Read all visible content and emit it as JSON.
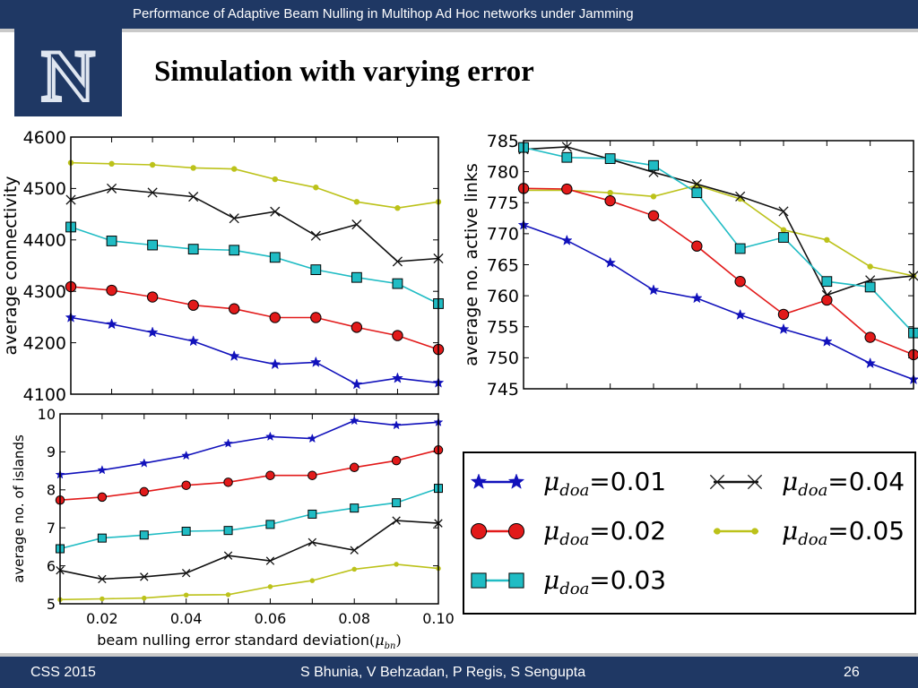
{
  "header": {
    "title": "Performance of Adaptive Beam Nulling in Multihop Ad Hoc networks under Jamming"
  },
  "logo": {
    "letter": "N"
  },
  "slide": {
    "title": "Simulation with varying error"
  },
  "footer": {
    "left": "CSS 2015",
    "center": "S Bhunia, V Behzadan, P Regis, S Sengupta",
    "page": "26"
  },
  "colors": {
    "header_bg": "#1f3864",
    "series": {
      "0.01": "#1111bb",
      "0.02": "#e21a1a",
      "0.03": "#20bcc4",
      "0.04": "#111111",
      "0.05": "#bcc21a"
    }
  },
  "legend": {
    "entries": [
      {
        "marker": "star",
        "color": "#1111bb",
        "label_sym": "μ",
        "label_sub": "doa",
        "label_eq": "=",
        "label_val": "0.01"
      },
      {
        "marker": "x",
        "color": "#111111",
        "label_sym": "μ",
        "label_sub": "doa",
        "label_eq": "=",
        "label_val": "0.04"
      },
      {
        "marker": "circle",
        "color": "#e21a1a",
        "label_sym": "μ",
        "label_sub": "doa",
        "label_eq": "=",
        "label_val": "0.02"
      },
      {
        "marker": "dot",
        "color": "#bcc21a",
        "label_sym": "μ",
        "label_sub": "doa",
        "label_eq": "=",
        "label_val": "0.05"
      },
      {
        "marker": "square",
        "color": "#20bcc4",
        "label_sym": "μ",
        "label_sub": "doa",
        "label_eq": "=",
        "label_val": "0.03"
      }
    ]
  },
  "chart_data": [
    {
      "type": "line",
      "ylabel": "average connectivity",
      "xlabel": "",
      "ylim": [
        4100,
        4600
      ],
      "xlim": [
        0.01,
        0.1
      ],
      "yticks": [
        "4100",
        "4200",
        "4300",
        "4400",
        "4500",
        "4600"
      ],
      "xticks": [],
      "x": [
        0.01,
        0.02,
        0.03,
        0.04,
        0.05,
        0.06,
        0.07,
        0.08,
        0.09,
        0.1
      ],
      "series": [
        {
          "name": "0.05",
          "marker": "dot",
          "values": [
            4550,
            4548,
            4546,
            4540,
            4538,
            4518,
            4502,
            4474,
            4462,
            4474
          ]
        },
        {
          "name": "0.04",
          "marker": "x",
          "values": [
            4478,
            4500,
            4492,
            4484,
            4442,
            4455,
            4408,
            4430,
            4358,
            4364
          ]
        },
        {
          "name": "0.03",
          "marker": "square",
          "values": [
            4425,
            4398,
            4390,
            4382,
            4380,
            4366,
            4342,
            4327,
            4315,
            4276
          ]
        },
        {
          "name": "0.02",
          "marker": "circle",
          "values": [
            4309,
            4302,
            4289,
            4273,
            4266,
            4249,
            4249,
            4230,
            4214,
            4187
          ]
        },
        {
          "name": "0.01",
          "marker": "star",
          "values": [
            4249,
            4236,
            4220,
            4203,
            4174,
            4158,
            4162,
            4119,
            4131,
            4122
          ]
        }
      ]
    },
    {
      "type": "line",
      "ylabel": "average no. active links",
      "xlabel": "",
      "ylim": [
        745,
        785
      ],
      "xlim": [
        0.01,
        0.1
      ],
      "yticks": [
        "745",
        "750",
        "755",
        "760",
        "765",
        "770",
        "775",
        "780",
        "785"
      ],
      "xticks": [],
      "x": [
        0.01,
        0.02,
        0.03,
        0.04,
        0.05,
        0.06,
        0.07,
        0.08,
        0.09,
        0.1
      ],
      "series": [
        {
          "name": "0.05",
          "marker": "dot",
          "values": [
            777.0,
            777.0,
            776.6,
            776.0,
            777.8,
            775.6,
            770.6,
            769.0,
            764.7,
            763.2
          ]
        },
        {
          "name": "0.04",
          "marker": "x",
          "values": [
            783.6,
            784.0,
            782.0,
            779.9,
            778.0,
            776.0,
            773.6,
            760.1,
            762.5,
            763.2
          ]
        },
        {
          "name": "0.03",
          "marker": "square",
          "values": [
            783.9,
            782.3,
            782.1,
            781.0,
            776.6,
            767.6,
            769.4,
            762.3,
            761.4,
            754.0
          ]
        },
        {
          "name": "0.02",
          "marker": "circle",
          "values": [
            777.3,
            777.2,
            775.3,
            772.9,
            768.0,
            762.3,
            757.0,
            759.3,
            753.3,
            750.5
          ]
        },
        {
          "name": "0.01",
          "marker": "star",
          "values": [
            771.4,
            768.9,
            765.3,
            760.9,
            759.6,
            756.9,
            754.6,
            752.6,
            749.1,
            746.5
          ]
        }
      ]
    },
    {
      "type": "line",
      "ylabel": "average no. of islands",
      "xlabel": "beam nulling error standard deviation",
      "xlabel_sym": "μ",
      "xlabel_sub": "bn",
      "ylim": [
        5,
        10
      ],
      "xlim": [
        0.01,
        0.1
      ],
      "yticks": [
        "5",
        "6",
        "7",
        "8",
        "9",
        "10"
      ],
      "xticks": [
        "0.02",
        "0.04",
        "0.06",
        "0.08",
        "0.10"
      ],
      "x": [
        0.01,
        0.02,
        0.03,
        0.04,
        0.05,
        0.06,
        0.07,
        0.08,
        0.09,
        0.1
      ],
      "series": [
        {
          "name": "0.01",
          "marker": "star",
          "values": [
            8.4,
            8.52,
            8.7,
            8.9,
            9.22,
            9.4,
            9.35,
            9.82,
            9.7,
            9.78
          ]
        },
        {
          "name": "0.02",
          "marker": "circle",
          "values": [
            7.73,
            7.81,
            7.95,
            8.12,
            8.2,
            8.38,
            8.38,
            8.59,
            8.77,
            9.05
          ]
        },
        {
          "name": "0.03",
          "marker": "square",
          "values": [
            6.45,
            6.73,
            6.81,
            6.91,
            6.93,
            7.09,
            7.36,
            7.52,
            7.66,
            8.04
          ]
        },
        {
          "name": "0.04",
          "marker": "x",
          "values": [
            5.88,
            5.65,
            5.71,
            5.81,
            6.27,
            6.13,
            6.62,
            6.41,
            7.19,
            7.12
          ]
        },
        {
          "name": "0.05",
          "marker": "dot",
          "values": [
            5.11,
            5.13,
            5.15,
            5.23,
            5.24,
            5.45,
            5.61,
            5.91,
            6.04,
            5.93
          ]
        }
      ]
    }
  ]
}
